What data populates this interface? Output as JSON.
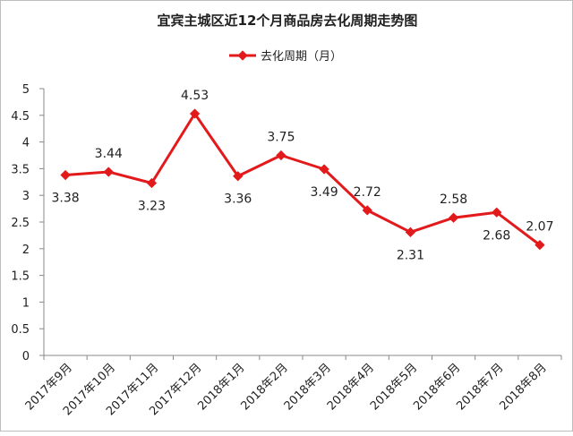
{
  "chart_data": {
    "type": "line",
    "title": "宜宾主城区近12个月商品房去化周期走势图",
    "legend": {
      "label": "去化周期（月）",
      "placement": "top-center"
    },
    "xlabel": "",
    "ylabel": "",
    "ylim": [
      0,
      5
    ],
    "yticks": [
      "0",
      "0.5",
      "1",
      "1.5",
      "2",
      "2.5",
      "3",
      "3.5",
      "4",
      "4.5",
      "5"
    ],
    "grid": false,
    "categories": [
      "2017年9月",
      "2017年10月",
      "2017年11月",
      "2017年12月",
      "2018年1月",
      "2018年2月",
      "2018年3月",
      "2018年4月",
      "2018年5月",
      "2018年6月",
      "2018年7月",
      "2018年8月"
    ],
    "series": [
      {
        "name": "去化周期（月）",
        "color": "#e31a1c",
        "values": [
          3.38,
          3.44,
          3.23,
          4.53,
          3.36,
          3.75,
          3.49,
          2.72,
          2.31,
          2.58,
          2.68,
          2.07
        ],
        "labels": [
          "3.38",
          "3.44",
          "3.23",
          "4.53",
          "3.36",
          "3.75",
          "3.49",
          "2.72",
          "2.31",
          "2.58",
          "2.68",
          "2.07"
        ],
        "label_side": [
          "below",
          "above",
          "below",
          "above",
          "below",
          "above",
          "below",
          "above",
          "below",
          "above",
          "below",
          "above"
        ]
      }
    ]
  }
}
